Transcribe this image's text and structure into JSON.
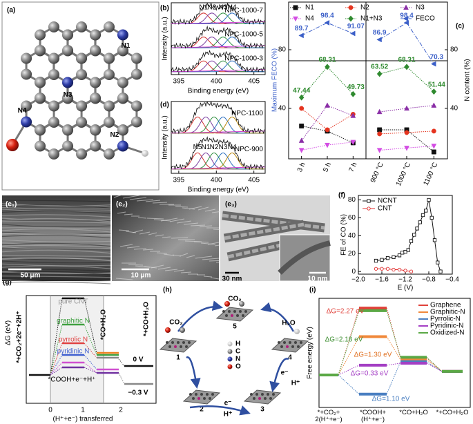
{
  "panels": {
    "a": {
      "label": "(a)",
      "atoms": [
        "N1",
        "N2",
        "N3",
        "N4"
      ]
    },
    "b": {
      "label": "(b)",
      "ylabel": "Intensity (a.u.)",
      "xlabel": "Binding energy (eV)",
      "xlim": [
        394,
        406.5
      ],
      "xticks": [
        395,
        400,
        405
      ],
      "peaks": [
        {
          "name": "N1",
          "position": 398.3
        },
        {
          "name": "N2",
          "position": 399.4
        },
        {
          "name": "N3",
          "position": 400.9
        },
        {
          "name": "N4",
          "position": 402.1
        }
      ],
      "samples": [
        "NPC-1000-7",
        "NPC-1000-5",
        "NPC-1000-3"
      ]
    },
    "d": {
      "label": "(d)",
      "ylabel": "Intensity (a.u.)",
      "xlabel": "Binding energy (eV)",
      "xlim": [
        394,
        406.5
      ],
      "xticks": [
        395,
        400,
        405
      ],
      "peaks": [
        {
          "name": "N5",
          "position": 397.5
        },
        {
          "name": "N1",
          "position": 398.6
        },
        {
          "name": "N2",
          "position": 399.7
        },
        {
          "name": "N3",
          "position": 400.9
        },
        {
          "name": "N4",
          "position": 402.1
        }
      ],
      "samples": [
        "NPC-1100",
        "NPC-900"
      ]
    },
    "e": {
      "labels": [
        "(e₁)",
        "(e₂)",
        "(e₃)"
      ],
      "scale_bars": [
        "50 μm",
        "10 μm",
        "30 nm",
        "10 nm"
      ]
    },
    "g": {
      "label": "(g)",
      "ylabel": "ΔG (eV)",
      "xlabel": "(H⁺+e⁻) transferred",
      "xticks": [
        "0",
        "1",
        "2"
      ],
      "states": [
        "*+CO₂+2e⁻+2H⁺",
        "*CO+H₂O",
        "*+CO+H₂O"
      ],
      "intermediate": "*COOH+e⁻+H⁺",
      "catalysts": [
        "pure CNT",
        "graphitic N",
        "pyrrolic N",
        "pyridinic N"
      ],
      "potentials": [
        "0 V",
        "−0.3 V"
      ]
    },
    "h": {
      "label": "(h)",
      "steps": [
        "1",
        "2",
        "3",
        "4",
        "5"
      ],
      "species": [
        "CO₂",
        "CO₂",
        "H₂O",
        "e⁻",
        "H⁺",
        "e⁻",
        "H⁺"
      ],
      "elements": [
        "H",
        "C",
        "N",
        "O"
      ]
    }
  },
  "chart_data": [
    {
      "type": "line",
      "panel_label": "(c)",
      "ylabel": "Maximum FECO (%)",
      "y2label": "N content (%)",
      "categories": [
        "3 h",
        "5 h",
        "7 h",
        "900 °C",
        "1000 °C",
        "1100 °C"
      ],
      "ylim": [
        5.6,
        112.5
      ],
      "yticks": [
        40,
        80
      ],
      "y2lim": [
        5.6,
        112.5
      ],
      "y2ticks": [
        40,
        80
      ],
      "series": [
        {
          "name": "N1",
          "color": "#111111",
          "marker": "square",
          "axis": "y2",
          "values": [
            28,
            24.5,
            16.5,
            25.4,
            25.4,
            10.3
          ]
        },
        {
          "name": "N2",
          "color": "#e5341f",
          "marker": "circle",
          "axis": "y2",
          "values": [
            40,
            25.4,
            36,
            22.6,
            23.5,
            24.5
          ]
        },
        {
          "name": "N3",
          "color": "#8a2ea6",
          "marker": "triangle-up",
          "axis": "y2",
          "values": [
            18,
            42,
            35,
            37.6,
            40,
            42
          ]
        },
        {
          "name": "N4",
          "color": "#d34de3",
          "marker": "triangle-down",
          "axis": "y2",
          "values": [
            11.5,
            15,
            17,
            11.5,
            13,
            14.4
          ]
        },
        {
          "name": "N1+N3",
          "color": "#2f8a2f",
          "marker": "diamond",
          "axis": "y2",
          "show_values": true,
          "values": [
            47.44,
            68.31,
            49.73,
            63.52,
            68.31,
            51.44
          ]
        },
        {
          "name": "FECO",
          "color": "#3b5fc8",
          "marker": "triangle-left",
          "show_values": true,
          "values": [
            89.7,
            98.4,
            91.07,
            86.9,
            98.4,
            70.3
          ]
        }
      ]
    },
    {
      "type": "scatter-line",
      "panel_label": "(f)",
      "xlabel": "E (V)",
      "ylabel": "FE of CO (%)",
      "xlim": [
        -2.0,
        -0.4
      ],
      "xticks": [
        {
          "value": -2.0,
          "label": "−2.0"
        },
        {
          "value": -1.6,
          "label": "−1.6"
        },
        {
          "value": -1.2,
          "label": "−1.2"
        },
        {
          "value": -0.8,
          "label": "−0.8"
        },
        {
          "value": -0.4,
          "label": "−0.4"
        }
      ],
      "ylim": [
        -3,
        85
      ],
      "yticks": [
        0,
        20,
        40,
        60,
        80
      ],
      "legend": "upper-left",
      "series": [
        {
          "name": "NCNT",
          "color": "#111111",
          "marker": "square",
          "x": [
            -1.7,
            -1.6,
            -1.5,
            -1.4,
            -1.3,
            -1.25,
            -1.2,
            -1.15,
            -1.1,
            -1.05,
            -1.0,
            -0.95,
            -0.9,
            -0.85,
            -0.8,
            -0.75,
            -0.7,
            -0.65,
            -0.6
          ],
          "values": [
            12,
            13,
            15,
            16,
            18,
            21,
            22,
            24,
            34,
            41,
            48,
            55,
            63,
            68,
            80,
            60,
            35,
            10,
            0
          ]
        },
        {
          "name": "CNT",
          "color": "#e03030",
          "marker": "circle",
          "x": [
            -1.7,
            -1.6,
            -1.5,
            -1.4,
            -1.3,
            -1.2,
            -1.1
          ],
          "values": [
            3,
            3,
            3,
            2,
            2,
            1,
            0
          ]
        }
      ]
    },
    {
      "type": "step",
      "panel_label": "(i)",
      "ylabel": "Free energy (eV)",
      "ylim": [
        -1.1,
        2.6
      ],
      "legend": "upper-right",
      "categories": [
        "*+CO₂+ 2(H⁺+e⁻)",
        "*COOH+ (H⁺+e⁻)",
        "*CO+H₂O",
        "*+CO+H₂O"
      ],
      "series": [
        {
          "name": "Graphene",
          "color": "#e0413a",
          "values": [
            0,
            2.27,
            0.58,
            0.12
          ]
        },
        {
          "name": "Graphitic-N",
          "color": "#f0883a",
          "values": [
            0,
            1.3,
            0.52,
            0.12
          ]
        },
        {
          "name": "Pyrrolic-N",
          "color": "#4a7fc1",
          "values": [
            0,
            -0.65,
            0.45,
            0.12
          ]
        },
        {
          "name": "Pyridinic-N",
          "color": "#a43fc4",
          "values": [
            0,
            0.33,
            0.4,
            0.12
          ]
        },
        {
          "name": "Oxidized-N",
          "color": "#5aa845",
          "values": [
            0,
            2.18,
            0.6,
            0.12
          ]
        }
      ],
      "annotations": [
        {
          "text": "ΔG=2.27 eV",
          "color": "#e0413a"
        },
        {
          "text": "ΔG=2.18 eV",
          "color": "#3f8f33"
        },
        {
          "text": "ΔG=1.30 eV",
          "color": "#e07020"
        },
        {
          "text": "ΔG=0.33 eV",
          "color": "#a43fc4"
        },
        {
          "text": "ΔG=1.10 eV",
          "color": "#4a7fc1"
        }
      ]
    }
  ]
}
